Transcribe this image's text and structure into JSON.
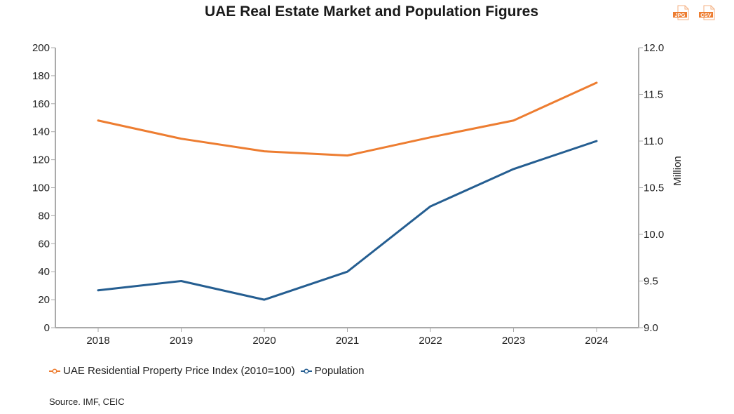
{
  "header": {
    "title": "UAE Real Estate Market and Population Figures"
  },
  "exports": [
    {
      "label": "JPG",
      "icon": "jpg-file-icon"
    },
    {
      "label": "CSV",
      "icon": "csv-file-icon"
    }
  ],
  "colors": {
    "price_index": "#ED7D31",
    "population": "#255E91",
    "axis": "#aaaaaa",
    "export_icon": "#ED7D31"
  },
  "chart_data": {
    "type": "line",
    "title": "UAE Real Estate Market and Population Figures",
    "categories": [
      "2018",
      "2019",
      "2020",
      "2021",
      "2022",
      "2023",
      "2024"
    ],
    "series": [
      {
        "name": "UAE Residential Property Price Index (2010=100)",
        "axis": "left",
        "color": "#ED7D31",
        "values": [
          148,
          135,
          126,
          123,
          136,
          148,
          175
        ]
      },
      {
        "name": "Population",
        "axis": "right",
        "color": "#255E91",
        "values": [
          9.4,
          9.5,
          9.3,
          9.6,
          10.3,
          10.7,
          11.0
        ]
      }
    ],
    "xlabel": "",
    "ylabel_left": "",
    "ylabel_right": "Million",
    "ylim_left": [
      0,
      200
    ],
    "ylim_right": [
      9.0,
      12.0
    ],
    "yticks_left": [
      "0",
      "20",
      "40",
      "60",
      "80",
      "100",
      "120",
      "140",
      "160",
      "180",
      "200"
    ],
    "yticks_right": [
      "9.0",
      "9.5",
      "10.0",
      "10.5",
      "11.0",
      "11.5",
      "12.0"
    ],
    "grid": false,
    "legend_position": "bottom-left"
  },
  "legend": {
    "items": [
      {
        "label": "UAE Residential Property Price Index (2010=100)"
      },
      {
        "label": "Population"
      }
    ]
  },
  "footer": {
    "source": "Source. IMF, CEIC"
  }
}
